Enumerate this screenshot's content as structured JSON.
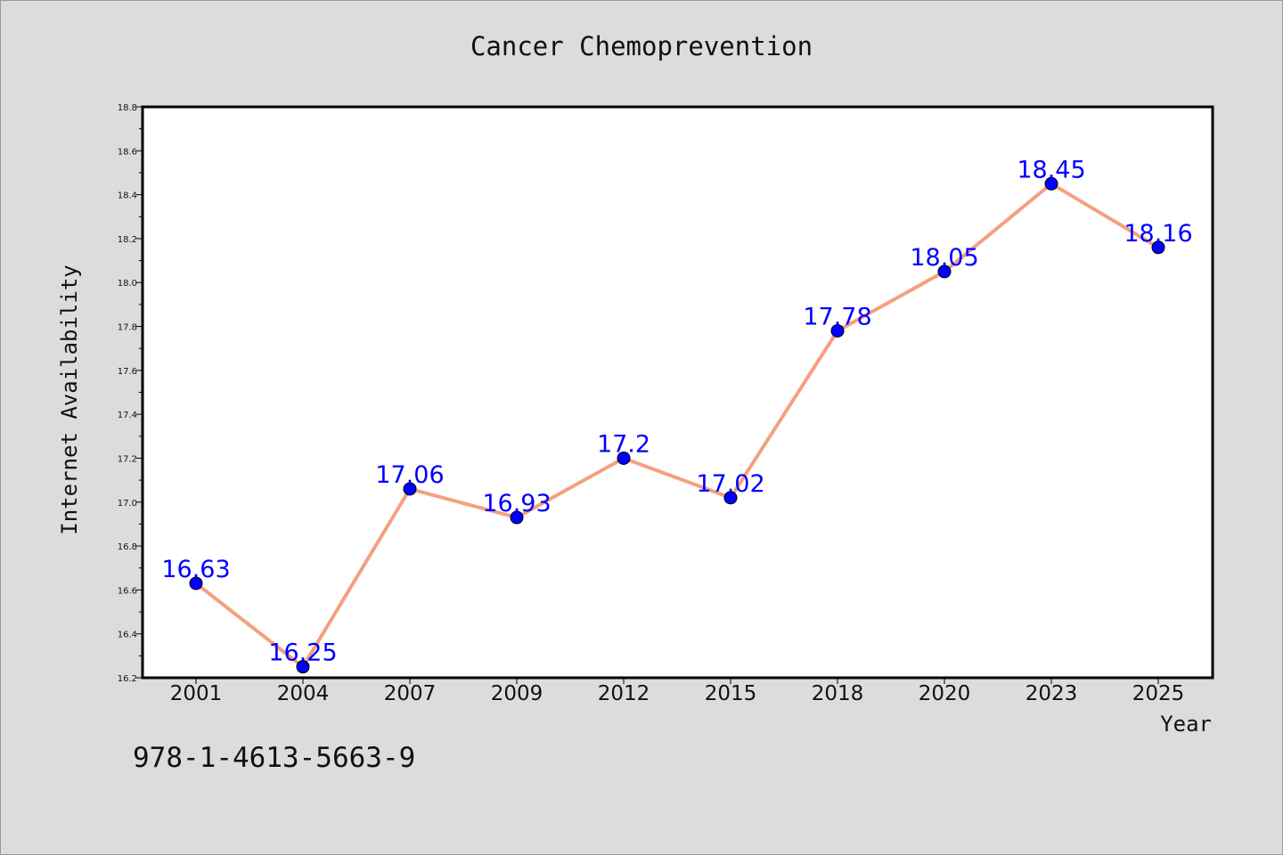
{
  "title": "Cancer Chemoprevention",
  "footer_text": "978-1-4613-5663-9",
  "colors": {
    "background": "#dcdcdc",
    "plot_background": "#ffffff",
    "line": "#f4a07f",
    "marker": "#0000ff",
    "data_label": "#0000ff"
  },
  "chart_data": {
    "type": "line",
    "title": "Cancer Chemoprevention",
    "xlabel": "Year",
    "ylabel": "Internet Availability",
    "categories": [
      "2001",
      "2004",
      "2007",
      "2009",
      "2012",
      "2015",
      "2018",
      "2020",
      "2023",
      "2025"
    ],
    "values": [
      16.63,
      16.25,
      17.06,
      16.93,
      17.2,
      17.02,
      17.78,
      18.05,
      18.45,
      18.16
    ],
    "data_labels": [
      "16.63",
      "16.25",
      "17.06",
      "16.93",
      "17.2",
      "17.02",
      "17.78",
      "18.05",
      "18.45",
      "18.16"
    ],
    "ylim": [
      16.2,
      18.8
    ],
    "yticks": [
      "16.2",
      "16.4",
      "16.6",
      "16.8",
      "17.0",
      "17.2",
      "17.4",
      "17.6",
      "17.8",
      "18.0",
      "18.2",
      "18.4",
      "18.6",
      "18.8"
    ],
    "grid": false,
    "legend": "none"
  }
}
